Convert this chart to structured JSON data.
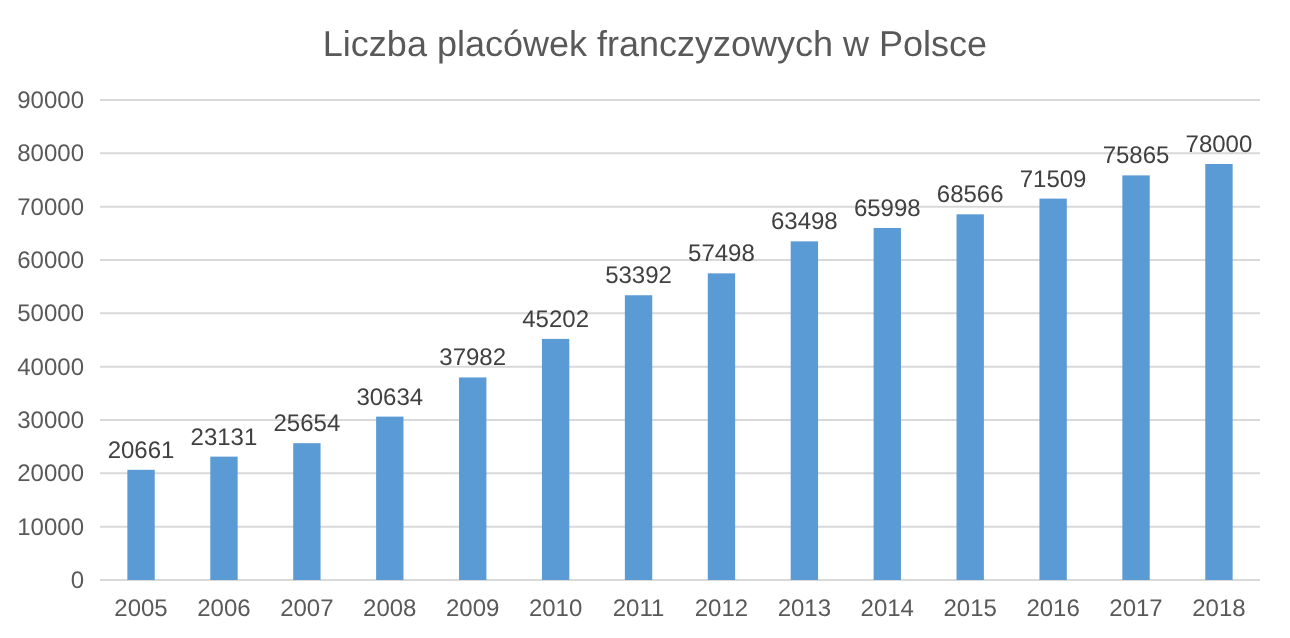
{
  "chart_data": {
    "type": "bar",
    "title": "Liczba placówek franczyzowych w Polsce",
    "categories": [
      "2005",
      "2006",
      "2007",
      "2008",
      "2009",
      "2010",
      "2011",
      "2012",
      "2013",
      "2014",
      "2015",
      "2016",
      "2017",
      "2018"
    ],
    "values": [
      20661,
      23131,
      25654,
      30634,
      37982,
      45202,
      53392,
      57498,
      63498,
      65998,
      68566,
      71509,
      75865,
      78000
    ],
    "color": "#5b9bd5",
    "data_labels": true,
    "ylim": [
      0,
      90000
    ],
    "yticks": [
      0,
      10000,
      20000,
      30000,
      40000,
      50000,
      60000,
      70000,
      80000,
      90000
    ],
    "grid": "y"
  }
}
